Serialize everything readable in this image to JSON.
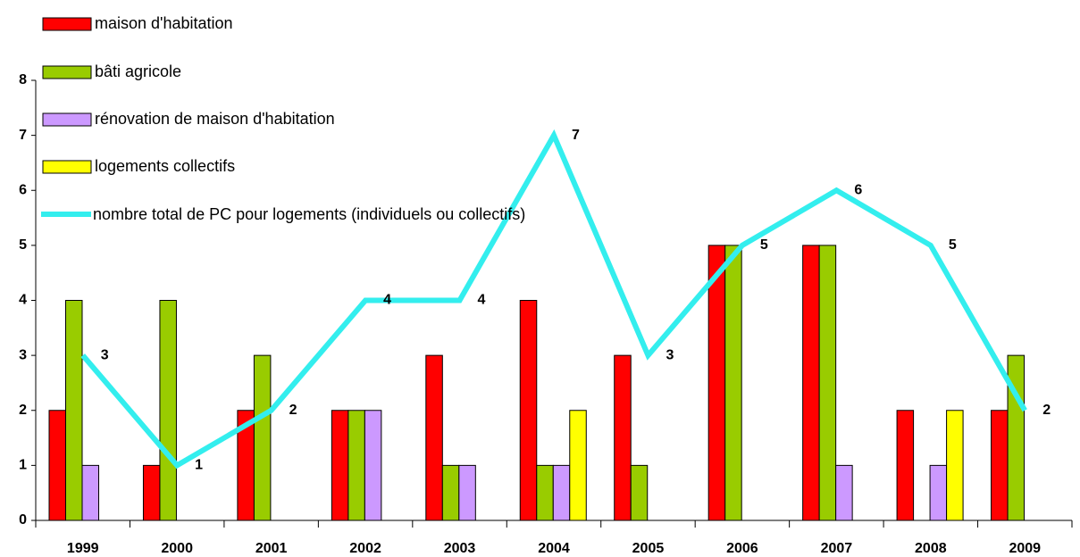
{
  "chart_data": {
    "type": "bar",
    "categories": [
      "1999",
      "2000",
      "2001",
      "2002",
      "2003",
      "2004",
      "2005",
      "2006",
      "2007",
      "2008",
      "2009"
    ],
    "series": [
      {
        "name": "maison d'habitation",
        "color": "#ff0000",
        "values": [
          2,
          1,
          2,
          2,
          3,
          4,
          3,
          5,
          5,
          2,
          2
        ]
      },
      {
        "name": "bâti agricole",
        "color": "#99cc00",
        "values": [
          4,
          4,
          3,
          2,
          1,
          1,
          1,
          5,
          5,
          0,
          3
        ]
      },
      {
        "name": "rénovation de maison d'habitation",
        "color": "#cc99ff",
        "values": [
          1,
          0,
          0,
          2,
          1,
          1,
          0,
          0,
          1,
          1,
          0
        ]
      },
      {
        "name": "logements collectifs",
        "color": "#ffff00",
        "values": [
          0,
          0,
          0,
          0,
          0,
          2,
          0,
          0,
          0,
          2,
          0
        ]
      },
      {
        "name": "nombre total de PC pour logements (individuels ou collectifs)",
        "color": "#33eeee",
        "type": "line",
        "values": [
          3,
          1,
          2,
          4,
          4,
          7,
          3,
          5,
          6,
          5,
          2
        ]
      }
    ],
    "ylim": [
      0,
      8
    ],
    "yticks": [
      0,
      1,
      2,
      3,
      4,
      5,
      6,
      7,
      8
    ],
    "legend": "top-left"
  }
}
